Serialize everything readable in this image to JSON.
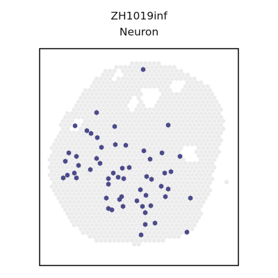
{
  "chart_data": {
    "type": "scatter",
    "title_lines": [
      "ZH1019inf",
      "Neuron"
    ],
    "xlabel": "",
    "ylabel": "",
    "axes_ticks": false,
    "grid": false,
    "legend": "none",
    "colors": {
      "background_spots": "#ebebeb",
      "highlight_spots": "#4b4a8a",
      "frame": "#000000"
    },
    "background_region": {
      "note_free": true,
      "outline": [
        [
          176,
          93
        ],
        [
          212,
          86
        ],
        [
          246,
          94
        ],
        [
          276,
          108
        ],
        [
          297,
          120
        ],
        [
          316,
          150
        ],
        [
          324,
          180
        ],
        [
          317,
          216
        ],
        [
          309,
          242
        ],
        [
          307,
          265
        ],
        [
          296,
          285
        ],
        [
          290,
          310
        ],
        [
          276,
          330
        ],
        [
          255,
          343
        ],
        [
          225,
          349
        ],
        [
          198,
          352
        ],
        [
          165,
          350
        ],
        [
          138,
          346
        ],
        [
          115,
          334
        ],
        [
          96,
          315
        ],
        [
          86,
          296
        ],
        [
          74,
          270
        ],
        [
          70,
          240
        ],
        [
          72,
          215
        ],
        [
          82,
          190
        ],
        [
          97,
          162
        ],
        [
          114,
          140
        ],
        [
          132,
          118
        ],
        [
          152,
          100
        ]
      ],
      "extra_spots": [
        [
          326,
          262
        ],
        [
          120,
          194
        ],
        [
          128,
          250
        ]
      ],
      "holes": [
        [
          [
            204,
            128
          ],
          [
            226,
            124
          ],
          [
            232,
            140
          ],
          [
            222,
            156
          ],
          [
            204,
            150
          ]
        ],
        [
          [
            184,
            142
          ],
          [
            196,
            138
          ],
          [
            200,
            156
          ],
          [
            188,
            160
          ]
        ],
        [
          [
            246,
            116
          ],
          [
            266,
            118
          ],
          [
            262,
            132
          ],
          [
            248,
            130
          ]
        ],
        [
          [
            262,
            212
          ],
          [
            282,
            210
          ],
          [
            284,
            232
          ],
          [
            266,
            234
          ]
        ],
        [
          [
            100,
            176
          ],
          [
            116,
            170
          ],
          [
            120,
            184
          ],
          [
            104,
            188
          ]
        ],
        [
          [
            160,
            104
          ],
          [
            176,
            100
          ],
          [
            178,
            112
          ],
          [
            164,
            114
          ]
        ]
      ]
    },
    "highlight_points": [
      [
        206,
        100
      ],
      [
        139,
        162
      ],
      [
        242,
        180
      ],
      [
        108,
        181
      ],
      [
        125,
        188
      ],
      [
        131,
        192
      ],
      [
        165,
        182
      ],
      [
        140,
        198
      ],
      [
        166,
        208
      ],
      [
        146,
        212
      ],
      [
        181,
        209
      ],
      [
        99,
        220
      ],
      [
        110,
        225
      ],
      [
        139,
        228
      ],
      [
        207,
        217
      ],
      [
        233,
        220
      ],
      [
        259,
        225
      ],
      [
        94,
        232
      ],
      [
        113,
        238
      ],
      [
        216,
        229
      ],
      [
        144,
        235
      ],
      [
        186,
        241
      ],
      [
        176,
        242
      ],
      [
        163,
        249
      ],
      [
        170,
        255
      ],
      [
        178,
        257
      ],
      [
        156,
        257
      ],
      [
        130,
        244
      ],
      [
        91,
        256
      ],
      [
        97,
        252
      ],
      [
        107,
        249
      ],
      [
        110,
        256
      ],
      [
        211,
        254
      ],
      [
        218,
        258
      ],
      [
        246,
        247
      ],
      [
        237,
        249
      ],
      [
        202,
        273
      ],
      [
        156,
        265
      ],
      [
        232,
        268
      ],
      [
        242,
        272
      ],
      [
        175,
        283
      ],
      [
        153,
        285
      ],
      [
        197,
        289
      ],
      [
        210,
        281
      ],
      [
        238,
        283
      ],
      [
        274,
        285
      ],
      [
        217,
        296
      ],
      [
        205,
        297
      ],
      [
        177,
        297
      ],
      [
        156,
        300
      ],
      [
        161,
        302
      ],
      [
        209,
        306
      ],
      [
        223,
        321
      ],
      [
        209,
        323
      ],
      [
        203,
        338
      ],
      [
        269,
        334
      ],
      [
        172,
        287
      ]
    ]
  }
}
